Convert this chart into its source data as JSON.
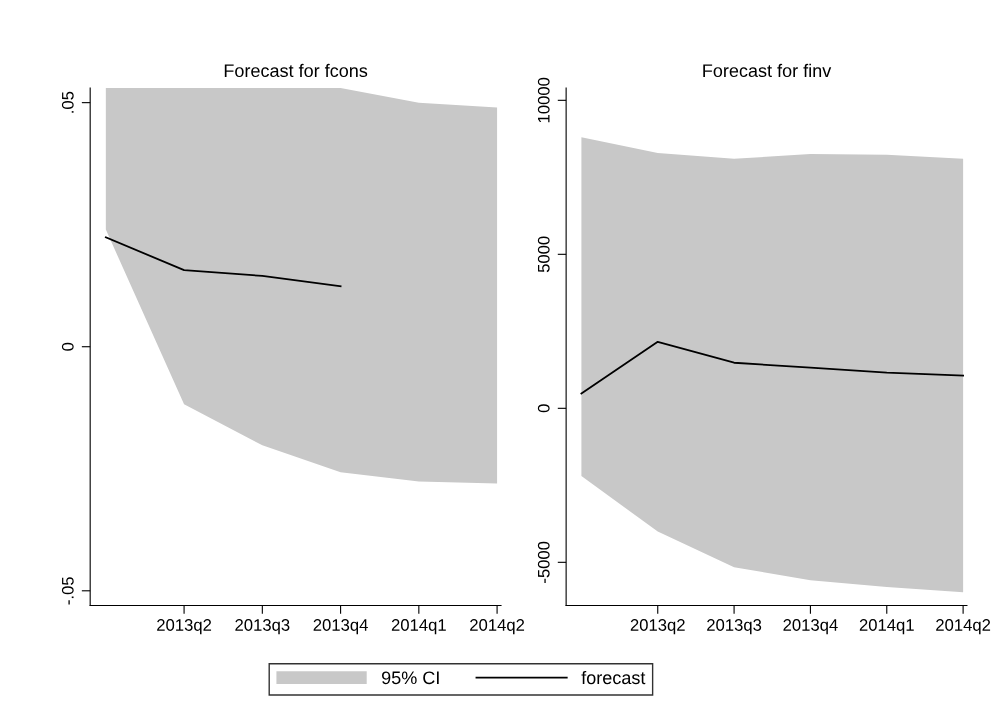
{
  "chart_data": [
    {
      "type": "line",
      "title": "Forecast for fcons",
      "categories": [
        null,
        "2013q2",
        "2013q3",
        "2013q4",
        "2014q1",
        "2014q2"
      ],
      "series": [
        {
          "name": "95% CI",
          "type": "area",
          "color": "#c8c8c8",
          "values": [
            null,
            null,
            null,
            null,
            null,
            null
          ]
        },
        {
          "name": "forecast",
          "color": "#000000",
          "values": [
            0.0224,
            0.0157,
            0.0145,
            0.0124,
            null,
            null
          ],
          "lower": [
            0.024,
            -0.0118,
            -0.0202,
            -0.0257,
            -0.0276,
            -0.028
          ],
          "upper": [
            0.053,
            0.053,
            0.053,
            0.053,
            0.05,
            0.049
          ]
        }
      ],
      "ylim": [
        -0.053,
        0.053
      ],
      "yticks": [
        {
          "value": -0.05,
          "label": "-.05"
        },
        0,
        {
          "value": 0.05,
          "label": ".05"
        }
      ],
      "grid": false,
      "legend": "bottom"
    },
    {
      "type": "line",
      "title": "Forecast for finv",
      "categories": [
        null,
        "2013q2",
        "2013q3",
        "2013q4",
        "2014q1",
        "2014q2"
      ],
      "series": [
        {
          "color": "#000000",
          "values": [
            480,
            2160,
            1480,
            1320,
            1160,
            1060
          ],
          "lower": [
            -2200,
            -4000,
            -5160,
            -5580,
            -5800,
            -5970
          ],
          "upper": [
            8800,
            8290,
            8100,
            8260,
            8230,
            8100
          ]
        }
      ],
      "ylim": [
        -6400,
        10400
      ],
      "yticks": [
        -5000,
        0,
        5000,
        10000
      ],
      "grid": false
    }
  ]
}
